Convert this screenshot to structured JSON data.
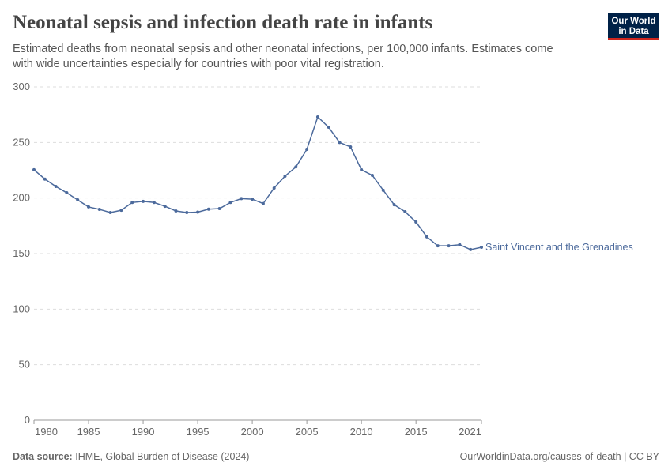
{
  "chart_data": {
    "type": "line",
    "title": "Neonatal sepsis and infection death rate in infants",
    "subtitle": [
      "Estimated deaths from neonatal sepsis and other neonatal infections, per 100,000 infants. Estimates come",
      "with wide uncertainties especially for countries with poor vital registration."
    ],
    "x": [
      1980,
      1981,
      1982,
      1983,
      1984,
      1985,
      1986,
      1987,
      1988,
      1989,
      1990,
      1991,
      1992,
      1993,
      1994,
      1995,
      1996,
      1997,
      1998,
      1999,
      2000,
      2001,
      2002,
      2003,
      2004,
      2005,
      2006,
      2007,
      2008,
      2009,
      2010,
      2011,
      2012,
      2013,
      2014,
      2015,
      2016,
      2017,
      2018,
      2019,
      2020,
      2021
    ],
    "series": [
      {
        "name": "Saint Vincent and the Grenadines",
        "color": "#4c6a9c",
        "values": [
          225.4,
          217,
          210.4,
          204.7,
          198.3,
          192,
          189.8,
          187,
          189,
          196,
          197,
          196,
          192.6,
          188.4,
          187,
          187.3,
          190,
          190.5,
          196,
          199.5,
          199,
          195,
          209,
          219.7,
          228,
          243.8,
          273,
          263.7,
          250,
          246,
          225.4,
          220.4,
          207,
          194,
          187.7,
          178.4,
          165,
          157,
          157,
          158,
          153.6,
          155.7
        ]
      }
    ],
    "xlim": [
      1980,
      2021
    ],
    "ylim": [
      0,
      300
    ],
    "xticks": [
      1980,
      1985,
      1990,
      1995,
      2000,
      2005,
      2010,
      2015,
      2021
    ],
    "yticks": [
      0,
      50,
      100,
      150,
      200,
      250,
      300
    ],
    "grid": true
  },
  "logo": [
    "Our World",
    "in Data"
  ],
  "footer": {
    "source_label": "Data source:",
    "source": "IHME, Global Burden of Disease (2024)",
    "note": "OurWorldinData.org/causes-of-death | CC BY"
  }
}
